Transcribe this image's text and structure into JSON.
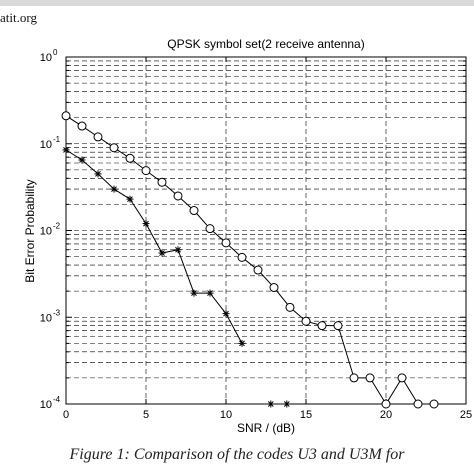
{
  "header": {
    "site": "atit.org"
  },
  "caption": "Figure 1: Comparison of the codes U3 and U3M for",
  "chart_data": {
    "type": "line",
    "title": "QPSK symbol set(2 receive antenna)",
    "xlabel": "SNR / (dB)",
    "ylabel": "Bit Error Probability",
    "xlim": [
      0,
      25
    ],
    "ylim": [
      0.0001,
      1
    ],
    "yscale": "log",
    "grid": true,
    "xticks": [
      "0",
      "5",
      "10",
      "15",
      "20",
      "25"
    ],
    "yticks": [
      {
        "base": "10",
        "exp": "0"
      },
      {
        "base": "10",
        "exp": "-1"
      },
      {
        "base": "10",
        "exp": "-2"
      },
      {
        "base": "10",
        "exp": "-3"
      },
      {
        "base": "10",
        "exp": "-4"
      }
    ],
    "series": [
      {
        "marker": "circle",
        "color": "#000000",
        "x": [
          0,
          1,
          2,
          3,
          4,
          5,
          6,
          7,
          8,
          9,
          10,
          11,
          12,
          13,
          14,
          15,
          16,
          17,
          18,
          19,
          20,
          21,
          22,
          23
        ],
        "y": [
          0.21,
          0.16,
          0.12,
          0.09,
          0.068,
          0.049,
          0.036,
          0.025,
          0.017,
          0.0105,
          0.0072,
          0.0049,
          0.0035,
          0.0022,
          0.0013,
          0.0009,
          0.0008,
          0.0008,
          0.0002,
          0.0002,
          0.0001,
          0.0002,
          0.0001,
          0.0001
        ]
      },
      {
        "marker": "star",
        "color": "#000000",
        "x": [
          0,
          1,
          2,
          3,
          4,
          5,
          6,
          7,
          8,
          9,
          10,
          11
        ],
        "y": [
          0.085,
          0.065,
          0.045,
          0.03,
          0.023,
          0.012,
          0.0055,
          0.006,
          0.0019,
          0.0019,
          0.0011,
          0.0005
        ]
      },
      {
        "marker": "star",
        "color": "#000000",
        "line": false,
        "x": [
          12.8,
          13.8
        ],
        "y": [
          0.0001,
          0.0001
        ]
      }
    ]
  }
}
